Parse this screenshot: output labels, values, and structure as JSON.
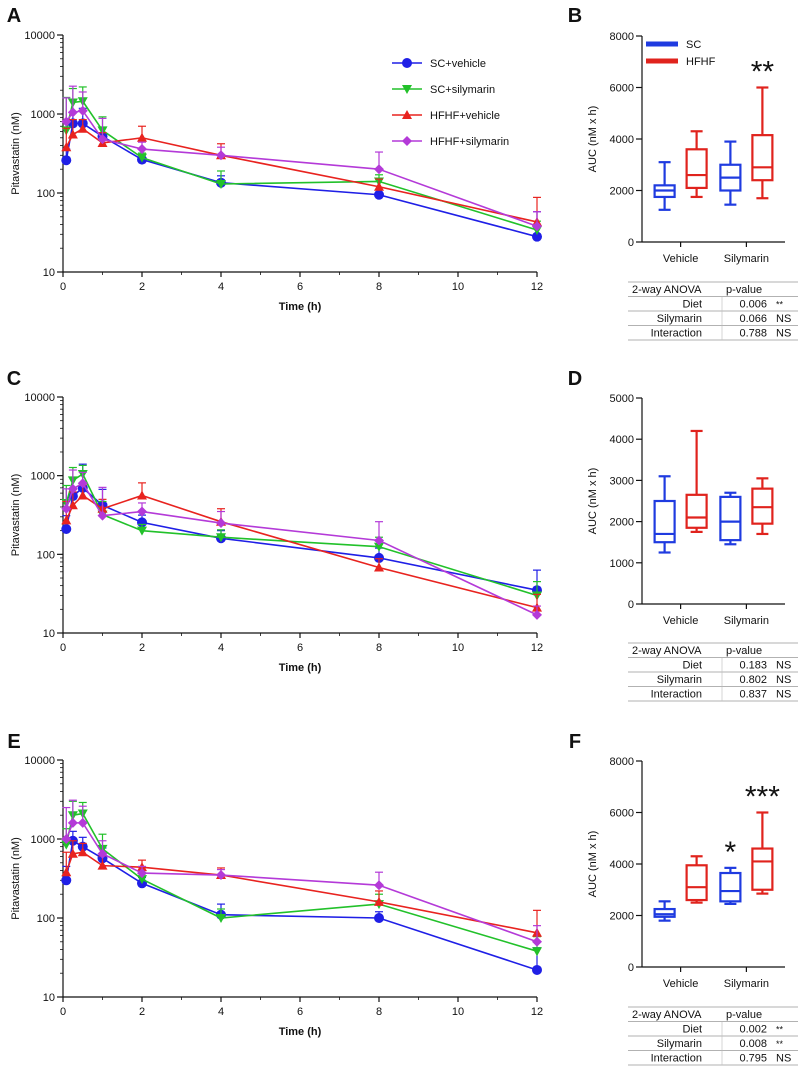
{
  "colors": {
    "sc_vehicle": "#1f1fe6",
    "sc_silymarin": "#22c12a",
    "hfhf_vehicle": "#e8231f",
    "hfhf_silymarin": "#b43ad8",
    "box_sc": "#1f3be0",
    "box_hfhf": "#e0231d"
  },
  "chart_data": [
    {
      "panel": "A",
      "type": "line",
      "xlabel": "Time (h)",
      "ylabel": "Pitavastatin (nM)",
      "yscale": "log",
      "ylim": [
        10,
        10000
      ],
      "xlim": [
        0,
        12
      ],
      "xticks": [
        "0",
        "2",
        "4",
        "6",
        "8",
        "10",
        "12"
      ],
      "yticks": [
        "10",
        "100",
        "1000",
        "10000"
      ],
      "legend": "top-right",
      "x": [
        0.083,
        0.25,
        0.5,
        1,
        2,
        4,
        8,
        12
      ],
      "series": [
        {
          "name": "SC+vehicle",
          "values": [
            260,
            760,
            760,
            520,
            265,
            135,
            95,
            28
          ],
          "err": [
            100,
            300,
            420,
            150,
            40,
            30,
            15,
            30
          ]
        },
        {
          "name": "SC+silymarin",
          "values": [
            620,
            1400,
            1450,
            620,
            280,
            130,
            140,
            34
          ],
          "err": [
            1000,
            700,
            750,
            300,
            40,
            60,
            30,
            10
          ]
        },
        {
          "name": "HFHF+vehicle",
          "values": [
            380,
            550,
            650,
            430,
            500,
            300,
            120,
            43
          ],
          "err": [
            280,
            300,
            200,
            150,
            200,
            120,
            30,
            45
          ]
        },
        {
          "name": "HFHF+silymarin",
          "values": [
            800,
            1050,
            1100,
            480,
            360,
            300,
            200,
            38
          ],
          "err": [
            800,
            1200,
            800,
            400,
            80,
            80,
            130,
            20
          ]
        }
      ]
    },
    {
      "panel": "B",
      "type": "box",
      "ylabel": "AUC (nM x h)",
      "ylim": [
        0,
        8000
      ],
      "yticks": [
        "0",
        "2000",
        "4000",
        "6000",
        "8000"
      ],
      "categories": [
        "Vehicle",
        "Silymarin"
      ],
      "legend_entries": [
        "SC",
        "HFHF"
      ],
      "boxes": [
        {
          "group": 0,
          "series": "SC",
          "min": 1250,
          "q1": 1750,
          "median": 2000,
          "q3": 2200,
          "max": 3100
        },
        {
          "group": 0,
          "series": "HFHF",
          "min": 1750,
          "q1": 2100,
          "median": 2600,
          "q3": 3600,
          "max": 4300
        },
        {
          "group": 1,
          "series": "SC",
          "min": 1450,
          "q1": 2000,
          "median": 2500,
          "q3": 3000,
          "max": 3900
        },
        {
          "group": 1,
          "series": "HFHF",
          "min": 1700,
          "q1": 2400,
          "median": 2900,
          "q3": 4150,
          "max": 6000
        }
      ],
      "annotations": [
        {
          "group": 1,
          "series": "HFHF",
          "text": "**"
        }
      ],
      "anova": {
        "header": [
          "2-way ANOVA",
          "p-value"
        ],
        "rows": [
          [
            "Diet",
            "0.006",
            "**"
          ],
          [
            "Silymarin",
            "0.066",
            "NS"
          ],
          [
            "Interaction",
            "0.788",
            "NS"
          ]
        ]
      }
    },
    {
      "panel": "C",
      "type": "line",
      "xlabel": "Time (h)",
      "ylabel": "Pitavastatin (nM)",
      "yscale": "log",
      "ylim": [
        10,
        10000
      ],
      "xlim": [
        0,
        12
      ],
      "xticks": [
        "0",
        "2",
        "4",
        "6",
        "8",
        "10",
        "12"
      ],
      "yticks": [
        "10",
        "100",
        "1000",
        "10000"
      ],
      "x": [
        0.083,
        0.25,
        0.5,
        1,
        2,
        4,
        8,
        12
      ],
      "series": [
        {
          "name": "SC+vehicle",
          "values": [
            210,
            550,
            700,
            420,
            255,
            160,
            90,
            35
          ],
          "err": [
            100,
            400,
            700,
            250,
            60,
            40,
            30,
            28
          ]
        },
        {
          "name": "SC+silymarin",
          "values": [
            450,
            870,
            1050,
            320,
            200,
            165,
            125,
            30
          ],
          "err": [
            300,
            400,
            300,
            150,
            40,
            40,
            40,
            15
          ]
        },
        {
          "name": "HFHF+vehicle",
          "values": [
            270,
            420,
            560,
            380,
            560,
            260,
            68,
            21
          ],
          "err": [
            200,
            200,
            200,
            120,
            250,
            120,
            20,
            10
          ]
        },
        {
          "name": "HFHF+silymarin",
          "values": [
            380,
            680,
            800,
            310,
            350,
            250,
            150,
            17
          ],
          "err": [
            300,
            500,
            300,
            400,
            100,
            100,
            110,
            5
          ]
        }
      ]
    },
    {
      "panel": "D",
      "type": "box",
      "ylabel": "AUC (nM x h)",
      "ylim": [
        0,
        5000
      ],
      "yticks": [
        "0",
        "1000",
        "2000",
        "3000",
        "4000",
        "5000"
      ],
      "categories": [
        "Vehicle",
        "Silymarin"
      ],
      "boxes": [
        {
          "group": 0,
          "series": "SC",
          "min": 1250,
          "q1": 1500,
          "median": 1700,
          "q3": 2500,
          "max": 3100
        },
        {
          "group": 0,
          "series": "HFHF",
          "min": 1750,
          "q1": 1850,
          "median": 2100,
          "q3": 2650,
          "max": 4200
        },
        {
          "group": 1,
          "series": "SC",
          "min": 1450,
          "q1": 1550,
          "median": 2000,
          "q3": 2600,
          "max": 2700
        },
        {
          "group": 1,
          "series": "HFHF",
          "min": 1700,
          "q1": 1950,
          "median": 2350,
          "q3": 2800,
          "max": 3050
        }
      ],
      "anova": {
        "header": [
          "2-way ANOVA",
          "p-value"
        ],
        "rows": [
          [
            "Diet",
            "0.183",
            "NS"
          ],
          [
            "Silymarin",
            "0.802",
            "NS"
          ],
          [
            "Interaction",
            "0.837",
            "NS"
          ]
        ]
      }
    },
    {
      "panel": "E",
      "type": "line",
      "xlabel": "Time (h)",
      "ylabel": "Pitavastatin (nM)",
      "yscale": "log",
      "ylim": [
        10,
        10000
      ],
      "xlim": [
        0,
        12
      ],
      "xticks": [
        "0",
        "2",
        "4",
        "6",
        "8",
        "10",
        "12"
      ],
      "yticks": [
        "10",
        "100",
        "1000",
        "10000"
      ],
      "x": [
        0.083,
        0.25,
        0.5,
        1,
        2,
        4,
        8,
        12
      ],
      "series": [
        {
          "name": "SC+vehicle",
          "values": [
            300,
            950,
            800,
            570,
            275,
            110,
            100,
            22
          ],
          "err": [
            150,
            300,
            250,
            200,
            50,
            40,
            20,
            20
          ]
        },
        {
          "name": "SC+silymarin",
          "values": [
            850,
            2000,
            2100,
            750,
            310,
            100,
            150,
            38
          ],
          "err": [
            500,
            1000,
            800,
            400,
            60,
            30,
            50,
            20
          ]
        },
        {
          "name": "HFHF+vehicle",
          "values": [
            380,
            650,
            680,
            460,
            440,
            350,
            160,
            65
          ],
          "err": [
            300,
            300,
            200,
            150,
            100,
            80,
            60,
            60
          ]
        },
        {
          "name": "HFHF+silymarin",
          "values": [
            1000,
            1600,
            1600,
            650,
            370,
            350,
            260,
            50
          ],
          "err": [
            1500,
            1500,
            1000,
            300,
            80,
            60,
            120,
            30
          ]
        }
      ]
    },
    {
      "panel": "F",
      "type": "box",
      "ylabel": "AUC (nM x h)",
      "ylim": [
        0,
        8000
      ],
      "yticks": [
        "0",
        "2000",
        "4000",
        "6000",
        "8000"
      ],
      "categories": [
        "Vehicle",
        "Silymarin"
      ],
      "boxes": [
        {
          "group": 0,
          "series": "SC",
          "min": 1800,
          "q1": 1950,
          "median": 2050,
          "q3": 2250,
          "max": 2550
        },
        {
          "group": 0,
          "series": "HFHF",
          "min": 2500,
          "q1": 2600,
          "median": 3100,
          "q3": 3950,
          "max": 4300
        },
        {
          "group": 1,
          "series": "SC",
          "min": 2450,
          "q1": 2550,
          "median": 2950,
          "q3": 3650,
          "max": 3850
        },
        {
          "group": 1,
          "series": "HFHF",
          "min": 2850,
          "q1": 3000,
          "median": 4100,
          "q3": 4600,
          "max": 6000
        }
      ],
      "annotations": [
        {
          "group": 1,
          "series": "SC",
          "text": "*"
        },
        {
          "group": 1,
          "series": "HFHF",
          "text": "***"
        }
      ],
      "anova": {
        "header": [
          "2-way ANOVA",
          "p-value"
        ],
        "rows": [
          [
            "Diet",
            "0.002",
            "**"
          ],
          [
            "Silymarin",
            "0.008",
            "**"
          ],
          [
            "Interaction",
            "0.795",
            "NS"
          ]
        ]
      }
    }
  ]
}
